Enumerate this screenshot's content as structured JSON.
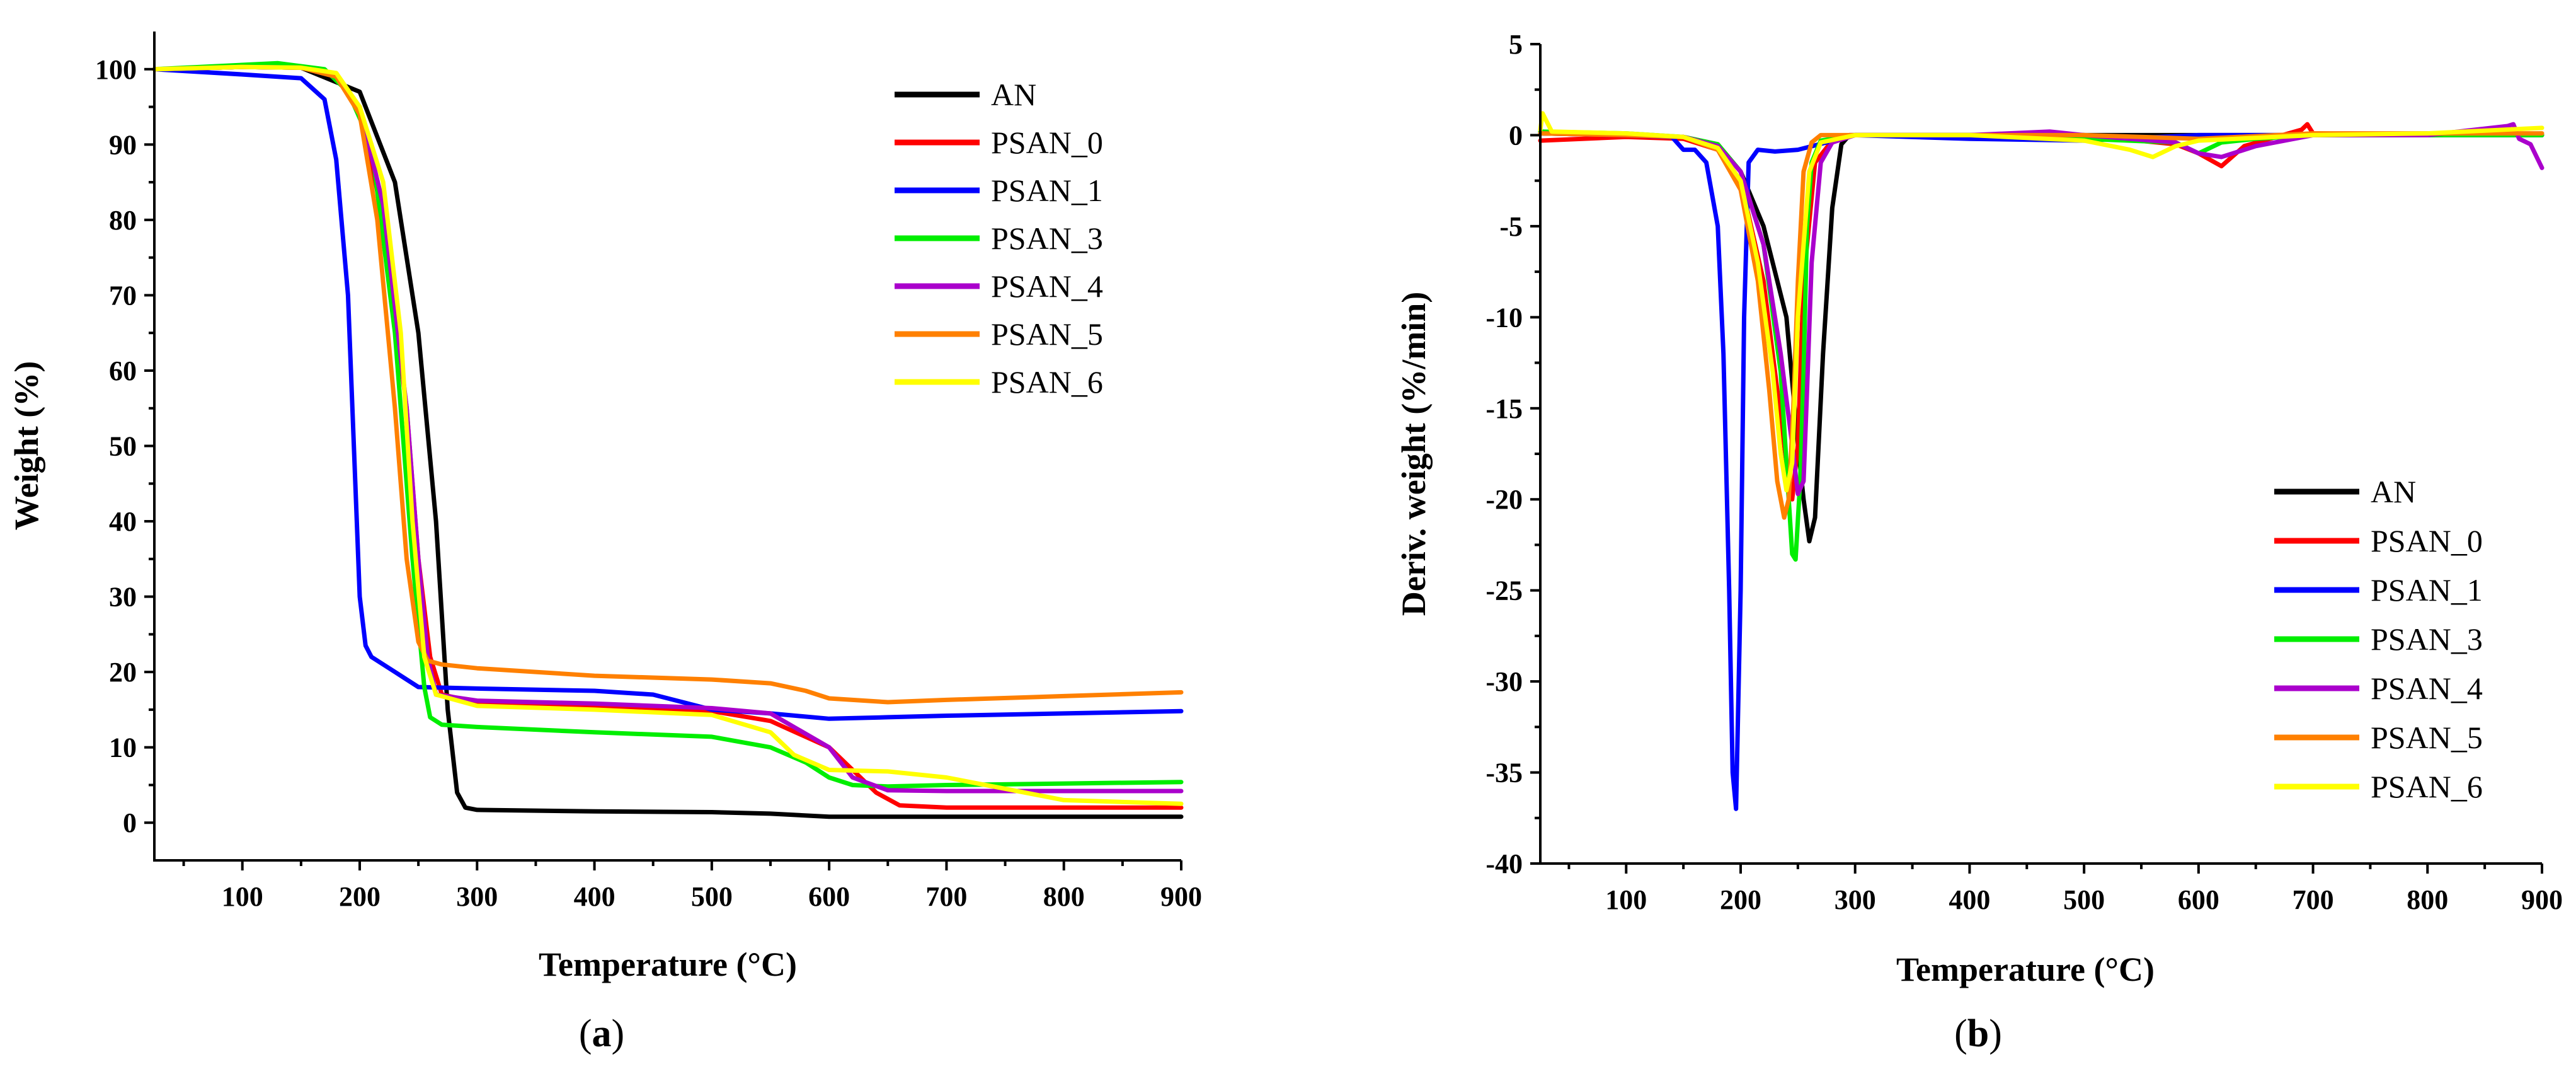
{
  "colors": {
    "AN": "#000000",
    "PSAN_0": "#ff0000",
    "PSAN_1": "#0000ff",
    "PSAN_3": "#00ee00",
    "PSAN_4": "#aa00cc",
    "PSAN_5": "#ff8000",
    "PSAN_6": "#ffff00"
  },
  "chart_data": [
    {
      "type": "line",
      "panel_label": "a",
      "title": "",
      "xlabel": "Temperature (°C)",
      "ylabel": "Weight (%)",
      "xlim": [
        25,
        900
      ],
      "ylim": [
        -5,
        105
      ],
      "xticks": [
        100,
        200,
        300,
        400,
        500,
        600,
        700,
        800,
        900
      ],
      "yticks": [
        0,
        10,
        20,
        30,
        40,
        50,
        60,
        70,
        80,
        90,
        100
      ],
      "legend": [
        "AN",
        "PSAN_0",
        "PSAN_1",
        "PSAN_3",
        "PSAN_4",
        "PSAN_5",
        "PSAN_6"
      ],
      "legend_position": "top-right",
      "series": [
        {
          "name": "AN",
          "x": [
            25,
            100,
            150,
            200,
            230,
            250,
            265,
            275,
            283,
            290,
            300,
            400,
            500,
            550,
            600,
            700,
            800,
            900
          ],
          "y": [
            100,
            100.3,
            100.2,
            97,
            85,
            65,
            40,
            15,
            4,
            2,
            1.7,
            1.5,
            1.4,
            1.2,
            0.8,
            0.8,
            0.8,
            0.8
          ]
        },
        {
          "name": "PSAN_0",
          "x": [
            25,
            100,
            150,
            180,
            200,
            220,
            240,
            250,
            260,
            270,
            300,
            400,
            500,
            550,
            600,
            640,
            660,
            700,
            800,
            900
          ],
          "y": [
            100,
            100.3,
            100.2,
            99,
            95,
            80,
            55,
            35,
            22,
            17,
            16,
            15.5,
            14.8,
            13.5,
            10,
            4,
            2.3,
            2,
            2,
            2
          ]
        },
        {
          "name": "PSAN_1",
          "x": [
            25,
            100,
            150,
            170,
            180,
            190,
            195,
            200,
            205,
            210,
            230,
            250,
            300,
            400,
            450,
            500,
            550,
            600,
            650,
            700,
            800,
            900
          ],
          "y": [
            100,
            99.3,
            98.8,
            96,
            88,
            70,
            50,
            30,
            23.5,
            22,
            20,
            18,
            17.8,
            17.5,
            17,
            15,
            14.5,
            13.8,
            14,
            14.2,
            14.5,
            14.8
          ]
        },
        {
          "name": "PSAN_3",
          "x": [
            25,
            130,
            170,
            190,
            210,
            230,
            245,
            255,
            260,
            270,
            300,
            400,
            500,
            550,
            580,
            600,
            620,
            650,
            700,
            800,
            900
          ],
          "y": [
            100,
            100.8,
            100,
            97,
            90,
            65,
            35,
            18,
            14,
            13,
            12.7,
            12,
            11.4,
            10,
            8,
            6,
            5,
            4.8,
            5,
            5.2,
            5.4
          ]
        },
        {
          "name": "PSAN_4",
          "x": [
            25,
            100,
            150,
            180,
            200,
            220,
            240,
            250,
            258,
            265,
            300,
            400,
            500,
            550,
            600,
            620,
            650,
            700,
            800,
            900
          ],
          "y": [
            100,
            100.3,
            100.2,
            99,
            95,
            82,
            55,
            35,
            22,
            17,
            16.2,
            15.8,
            15.2,
            14.5,
            10,
            6,
            4.3,
            4.2,
            4.2,
            4.2
          ]
        },
        {
          "name": "PSAN_5",
          "x": [
            25,
            100,
            150,
            180,
            200,
            215,
            230,
            240,
            250,
            258,
            270,
            300,
            400,
            500,
            550,
            580,
            600,
            650,
            700,
            800,
            900
          ],
          "y": [
            100,
            100.3,
            100.2,
            99,
            94,
            80,
            55,
            35,
            24,
            21.5,
            21,
            20.5,
            19.5,
            19,
            18.5,
            17.5,
            16.5,
            16,
            16.3,
            16.8,
            17.3
          ]
        },
        {
          "name": "PSAN_6",
          "x": [
            25,
            100,
            150,
            180,
            200,
            220,
            235,
            245,
            255,
            265,
            300,
            400,
            500,
            550,
            570,
            600,
            650,
            700,
            750,
            800,
            900
          ],
          "y": [
            100,
            100.3,
            100.2,
            99.5,
            95,
            85,
            65,
            40,
            22,
            17,
            15.5,
            15,
            14.3,
            12,
            9,
            7,
            6.8,
            6,
            4.5,
            3,
            2.5
          ]
        }
      ]
    },
    {
      "type": "line",
      "panel_label": "b",
      "title": "",
      "xlabel": "Temperature (°C)",
      "ylabel": "Deriv. weight (%/min)",
      "xlim": [
        25,
        900
      ],
      "ylim": [
        -40,
        5
      ],
      "xticks": [
        100,
        200,
        300,
        400,
        500,
        600,
        700,
        800,
        900
      ],
      "yticks": [
        5,
        0,
        -5,
        -10,
        -15,
        -20,
        -25,
        -30,
        -35,
        -40
      ],
      "legend": [
        "AN",
        "PSAN_0",
        "PSAN_1",
        "PSAN_3",
        "PSAN_4",
        "PSAN_5",
        "PSAN_6"
      ],
      "legend_position": "bottom-right",
      "series": [
        {
          "name": "AN",
          "x": [
            25,
            100,
            150,
            180,
            200,
            220,
            240,
            250,
            255,
            260,
            265,
            272,
            280,
            288,
            295,
            400,
            500,
            600,
            700,
            800,
            900
          ],
          "y": [
            0.2,
            0,
            -0.1,
            -0.5,
            -2,
            -5,
            -10,
            -17,
            -20,
            -22.3,
            -21,
            -12,
            -4,
            -0.5,
            0,
            0,
            0,
            0,
            0,
            0,
            0
          ]
        },
        {
          "name": "PSAN_0",
          "x": [
            25,
            100,
            150,
            180,
            200,
            220,
            230,
            240,
            245,
            250,
            255,
            265,
            280,
            300,
            400,
            500,
            580,
            600,
            620,
            640,
            690,
            695,
            700,
            800,
            900
          ],
          "y": [
            -0.3,
            -0.1,
            -0.2,
            -0.8,
            -2.5,
            -8,
            -13,
            -18,
            -20,
            -17,
            -8,
            -1.5,
            -0.3,
            0,
            0,
            0,
            -0.5,
            -1,
            -1.7,
            -0.6,
            0.3,
            0.6,
            0.1,
            0,
            0
          ]
        },
        {
          "name": "PSAN_1",
          "x": [
            25,
            100,
            140,
            150,
            160,
            170,
            180,
            185,
            190,
            193,
            196,
            200,
            203,
            207,
            215,
            230,
            250,
            300,
            400,
            500,
            600,
            700,
            800,
            900
          ],
          "y": [
            0.1,
            0,
            -0.1,
            -0.8,
            -0.8,
            -1.5,
            -5,
            -12,
            -25,
            -35,
            -37,
            -25,
            -10,
            -1.5,
            -0.8,
            -0.9,
            -0.8,
            0,
            -0.2,
            -0.3,
            0,
            0,
            0,
            0
          ]
        },
        {
          "name": "PSAN_3",
          "x": [
            25,
            100,
            150,
            180,
            200,
            220,
            235,
            240,
            245,
            248,
            252,
            255,
            258,
            262,
            270,
            300,
            400,
            500,
            580,
            600,
            620,
            650,
            700,
            800,
            900
          ],
          "y": [
            0.2,
            0.1,
            -0.1,
            -0.5,
            -2,
            -6,
            -13,
            -18,
            -23,
            -23.3,
            -19,
            -13,
            -5,
            -1.5,
            -0.3,
            0,
            0,
            -0.2,
            -0.4,
            -1,
            -0.4,
            -0.2,
            0,
            0,
            0
          ]
        },
        {
          "name": "PSAN_4",
          "x": [
            25,
            100,
            150,
            180,
            200,
            220,
            235,
            245,
            250,
            255,
            258,
            262,
            270,
            280,
            300,
            400,
            470,
            500,
            580,
            600,
            620,
            650,
            700,
            800,
            870,
            875,
            880,
            890,
            900
          ],
          "y": [
            0.1,
            0,
            -0.1,
            -0.6,
            -2,
            -6,
            -12,
            -17,
            -19.7,
            -19,
            -14,
            -7,
            -1.5,
            -0.4,
            0,
            0,
            0.2,
            0,
            -0.4,
            -1,
            -1.2,
            -0.6,
            0,
            0,
            0.5,
            0.6,
            -0.2,
            -0.5,
            -1.8
          ]
        },
        {
          "name": "PSAN_5",
          "x": [
            25,
            100,
            150,
            180,
            200,
            215,
            225,
            232,
            238,
            242,
            246,
            250,
            255,
            262,
            270,
            300,
            400,
            500,
            600,
            700,
            800,
            900
          ],
          "y": [
            0.1,
            0,
            -0.1,
            -0.8,
            -3,
            -8,
            -14,
            -19,
            -21,
            -20,
            -15,
            -8,
            -2,
            -0.4,
            0,
            0,
            0,
            0,
            -0.2,
            0.1,
            0.1,
            0.1
          ]
        },
        {
          "name": "PSAN_6",
          "x": [
            25,
            27,
            35,
            100,
            150,
            180,
            200,
            215,
            228,
            235,
            240,
            245,
            250,
            260,
            270,
            300,
            400,
            500,
            540,
            560,
            580,
            600,
            700,
            800,
            900
          ],
          "y": [
            0.3,
            1.2,
            0.2,
            0.1,
            -0.1,
            -0.7,
            -2.5,
            -7,
            -13,
            -17.5,
            -19.5,
            -18,
            -10,
            -2,
            -0.4,
            0,
            0,
            -0.3,
            -0.8,
            -1.2,
            -0.6,
            -0.3,
            0,
            0.1,
            0.4
          ]
        }
      ]
    }
  ]
}
